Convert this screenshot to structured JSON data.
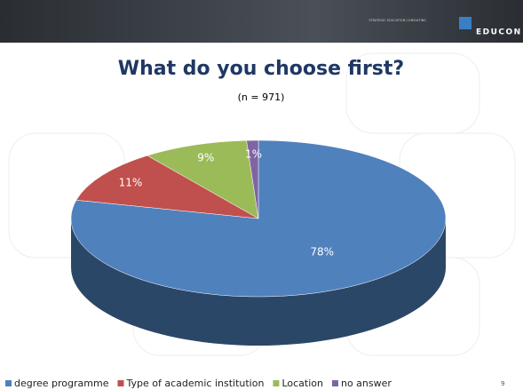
{
  "header": {
    "tagline": "STRATEGIC EDUCATION CONSULTING",
    "logo": "EDUCON"
  },
  "page_number": "9",
  "chart_data": {
    "type": "pie",
    "title": "What do you choose first?",
    "subtitle": "(n = 971)",
    "categories": [
      "degree programme",
      "Type of academic institution",
      "Location",
      "no answer"
    ],
    "values": [
      78,
      11,
      9,
      1
    ],
    "value_labels": [
      "78%",
      "11%",
      "9%",
      "1%"
    ],
    "colors": [
      "#4f81bd",
      "#c0504d",
      "#9bbb59",
      "#8064a2"
    ],
    "legend": "bottom"
  }
}
